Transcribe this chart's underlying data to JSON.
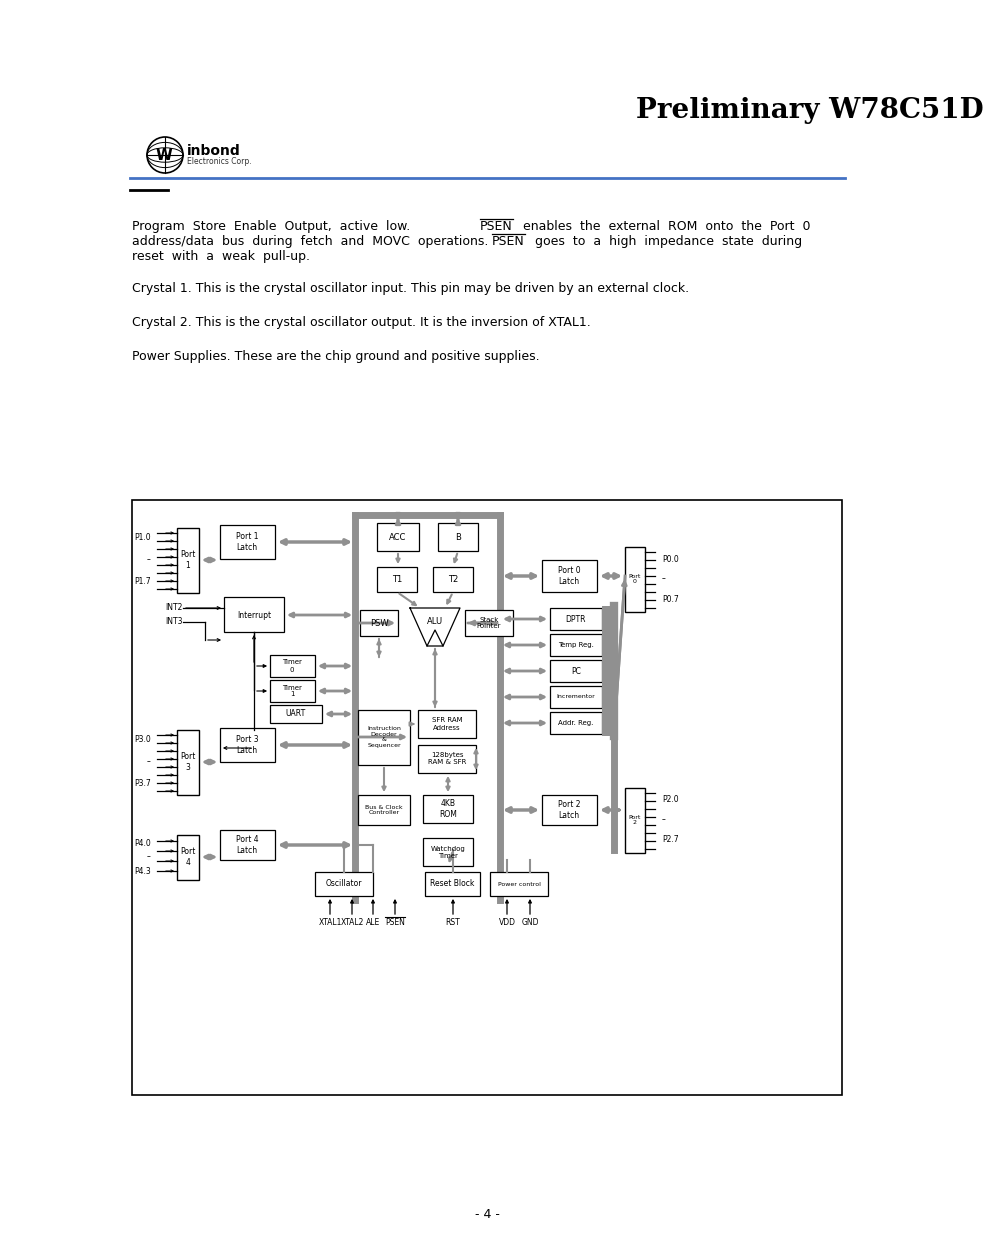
{
  "title": "Preliminary W78C51D",
  "bg_color": "#ffffff",
  "header_line_color": "#4472c4",
  "bus_color": "#909090",
  "page_number": "- 4 -",
  "para1a": "Program  Store  Enable  Output,  active  low.  ",
  "para1b": "  enables  the  external  ROM  onto  the  Port  0",
  "para2a": "address/data  bus  during  fetch  and  MOVC  operations.  ",
  "para2b": "  goes  to  a  high  impedance  state  during",
  "para3": "reset  with  a  weak  pull-up.",
  "para4": "Crystal 1. This is the crystal oscillator input. This pin may be driven by an external clock.",
  "para5": "Crystal 2. This is the crystal oscillator output. It is the inversion of XTAL1.",
  "para6": "Power Supplies. These are the chip ground and positive supplies."
}
